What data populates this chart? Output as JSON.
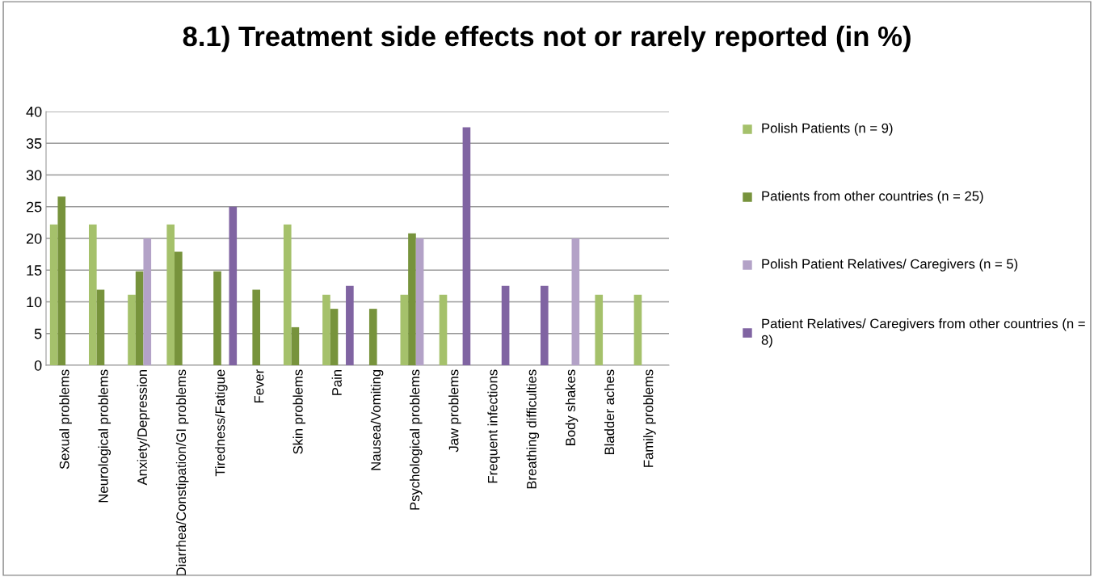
{
  "chart_data": {
    "type": "bar",
    "title": "8.1) Treatment side effects not or rarely reported (in %)",
    "categories": [
      "Sexual problems",
      "Neurological problems",
      "Anxiety/Depression",
      "Diarrhea/Constipation/GI problems",
      "Tiredness/Fatigue",
      "Fever",
      "Skin problems",
      "Pain",
      "Nausea/Vomiting",
      "Psychological problems",
      "Jaw problems",
      "Frequent infections",
      "Breathing difficulties",
      "Body shakes",
      "Bladder aches",
      "Family problems"
    ],
    "series": [
      {
        "name": "Polish Patients (n = 9)",
        "color": "#a5c16b",
        "values": [
          22.2,
          22.2,
          11.1,
          22.2,
          null,
          null,
          22.2,
          11.1,
          null,
          11.1,
          11.1,
          null,
          null,
          null,
          11.1,
          11.1
        ]
      },
      {
        "name": "Patients from other countries (n = 25)",
        "color": "#77933c",
        "values": [
          26.6,
          11.9,
          14.8,
          17.9,
          14.8,
          11.9,
          6.0,
          8.9,
          8.9,
          20.8,
          null,
          null,
          null,
          null,
          null,
          null
        ]
      },
      {
        "name": "Polish Patient Relatives/ Caregivers (n = 5)",
        "color": "#b3a2c7",
        "values": [
          null,
          null,
          20,
          null,
          null,
          null,
          null,
          null,
          null,
          20,
          null,
          null,
          null,
          20,
          null,
          null
        ]
      },
      {
        "name": "Patient Relatives/ Caregivers from other countries (n = 8)",
        "color": "#8064a2",
        "values": [
          null,
          null,
          null,
          null,
          25,
          null,
          null,
          12.5,
          null,
          null,
          37.5,
          12.5,
          12.5,
          null,
          null,
          null
        ]
      }
    ],
    "ylim": [
      0,
      40
    ],
    "yticks": [
      0,
      5,
      10,
      15,
      20,
      25,
      30,
      35,
      40
    ],
    "grid": "y",
    "legend": "right"
  }
}
